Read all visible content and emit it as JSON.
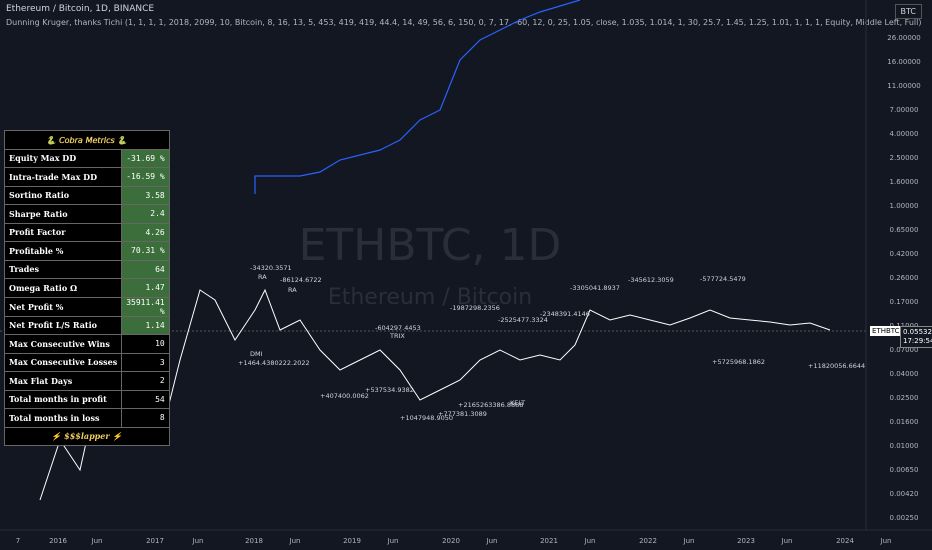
{
  "header": {
    "symbol": "Ethereum / Bitcoin, 1D, BINANCE",
    "indicator": "Dunning Kruger, thanks Tichi (1, 1, 1, 1, 2018, 2099, 10, Bitcoin, 8, 16, 13, 5, 453, 419, 419, 44.4, 14, 49, 56, 6, 150, 0, 7, 17, -60, 12, 0, 25, 1.05, close, 1.035, 1.014, 1, 30, 25.7, 1.45, 1.25, 1.01, 1, 1, 1, Equity, Middle Left, Full)",
    "currency": "BTC"
  },
  "watermark": {
    "ticker": "ETHBTC, 1D",
    "name": "Ethereum / Bitcoin"
  },
  "metrics": {
    "title": "🐍 𝘊𝘰𝘣𝘳𝘢 𝘔𝘦𝘵𝘳𝘪𝘤𝘴 🐍",
    "rows": [
      [
        "Equity Max DD",
        "-31.69 %"
      ],
      [
        "Intra-trade Max DD",
        "-16.59 %"
      ],
      [
        "Sortino Ratio",
        "3.58"
      ],
      [
        "Sharpe Ratio",
        "2.4"
      ],
      [
        "Profit Factor",
        "4.26"
      ],
      [
        "Profitable %",
        "70.31 %"
      ],
      [
        "Trades",
        "64"
      ],
      [
        "Omega Ratio Ω",
        "1.47"
      ],
      [
        "Net Profit %",
        "35911.41 %"
      ],
      [
        "Net Profit L/S Ratio",
        "1.14"
      ],
      [
        "Max Consecutive Wins",
        "10"
      ],
      [
        "Max Consecutive Losses",
        "3"
      ],
      [
        "Max Flat Days",
        "2"
      ],
      [
        "Total months in profit",
        "54"
      ],
      [
        "Total months in loss",
        "8"
      ]
    ],
    "footer": "⚡ $$$lapper ⚡"
  },
  "price_axis": [
    "26.00000",
    "16.00000",
    "11.00000",
    "7.00000",
    "4.00000",
    "2.50000",
    "1.60000",
    "1.00000",
    "0.65000",
    "0.42000",
    "0.26000",
    "0.17000",
    "0.11000",
    "0.07000",
    "0.04000",
    "0.02500",
    "0.01600",
    "0.01000",
    "0.00650",
    "0.00420",
    "0.00250"
  ],
  "time_axis": [
    "7",
    "2016",
    "Jun",
    "2017",
    "Jun",
    "2018",
    "Jun",
    "2019",
    "Jun",
    "2020",
    "Jun",
    "2021",
    "Jun",
    "2022",
    "Jun",
    "2023",
    "Jun",
    "2024",
    "Jun"
  ],
  "last_price": {
    "symbol": "ETHBTC",
    "price": "0.05532",
    "countdown": "17:29:54"
  },
  "annotations": [
    "-34320.3571",
    "RA",
    "-86124.6722",
    "RA",
    "DMI",
    "+1464.4380222.2022",
    "-604297.4453",
    "TRIX",
    "+407400.0062",
    "+537534.9382",
    "-1987298.2356",
    "+1047948.9050",
    "+777381.3089",
    "-2525477.3324",
    "-2348391.4146",
    "KELT",
    "+2165263386.8888",
    "-3305041.8937",
    "-345612.3059",
    "+5725968.1862",
    "-577724.5479",
    "+11820056.6644"
  ]
}
